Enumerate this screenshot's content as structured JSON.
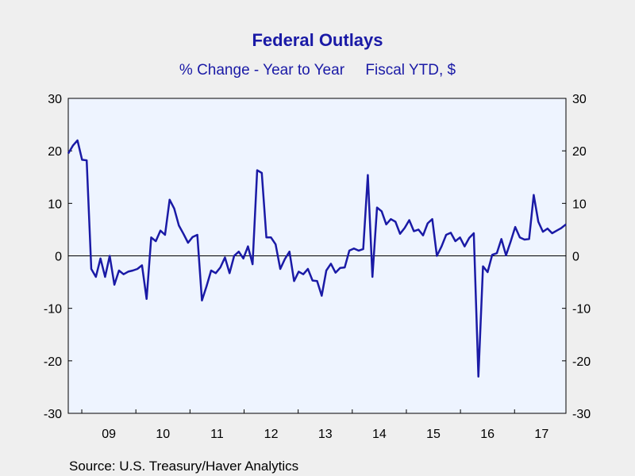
{
  "chart_data": {
    "type": "line",
    "title": "Federal Outlays",
    "subtitle": "% Change - Year to Year     Fiscal YTD, $",
    "source": "Source:  U.S. Treasury/Haver Analytics",
    "xlabel": "",
    "ylabel": "",
    "ylim": [
      -30,
      30
    ],
    "yticks": [
      -30,
      -20,
      -10,
      0,
      10,
      20,
      30
    ],
    "x_tick_labels": [
      "09",
      "10",
      "11",
      "12",
      "13",
      "14",
      "15",
      "16",
      "17"
    ],
    "x_start_year": 2008.75,
    "x_end_year": 2017.95,
    "grid": false,
    "legend": "none",
    "colors": {
      "line": "#1a1aa6",
      "plot_bg": "#eef4ff",
      "page_bg": "#efefef",
      "zero_line": "#000000"
    },
    "series": [
      {
        "values": [
          19.5,
          21,
          22,
          18.3,
          18.2,
          -2.5,
          -4,
          -0.5,
          -4,
          0,
          -5.5,
          -2.8,
          -3.5,
          -3,
          -2.8,
          -2.5,
          -1.8,
          -8.2,
          3.5,
          2.8,
          4.8,
          4,
          10.7,
          9,
          5.8,
          4.2,
          2.5,
          3.6,
          4,
          -8.5,
          -5.8,
          -2.8,
          -3.3,
          -2.2,
          -0.3,
          -3.3,
          0,
          0.8,
          -0.5,
          1.8,
          -1.6,
          16.3,
          15.8,
          3.5,
          3.5,
          2.2,
          -2.5,
          -0.6,
          0.8,
          -4.8,
          -3,
          -3.5,
          -2.5,
          -4.7,
          -4.8,
          -7.6,
          -2.8,
          -1.5,
          -3.2,
          -2.3,
          -2.2,
          1,
          1.4,
          1,
          1.3,
          15.4,
          -4,
          9.2,
          8.5,
          6,
          7,
          6.5,
          4.2,
          5.3,
          6.8,
          4.7,
          5,
          3.9,
          6.2,
          7,
          0,
          1.8,
          4,
          4.4,
          2.8,
          3.5,
          1.8,
          3.4,
          4.3,
          -23,
          -2,
          -3.1,
          0.2,
          0.5,
          3.2,
          0.1,
          2.7,
          5.5,
          3.5,
          3.1,
          3.2,
          11.6,
          6.5,
          4.6,
          5.2,
          4.3,
          4.8,
          5.3,
          6
        ]
      }
    ]
  }
}
